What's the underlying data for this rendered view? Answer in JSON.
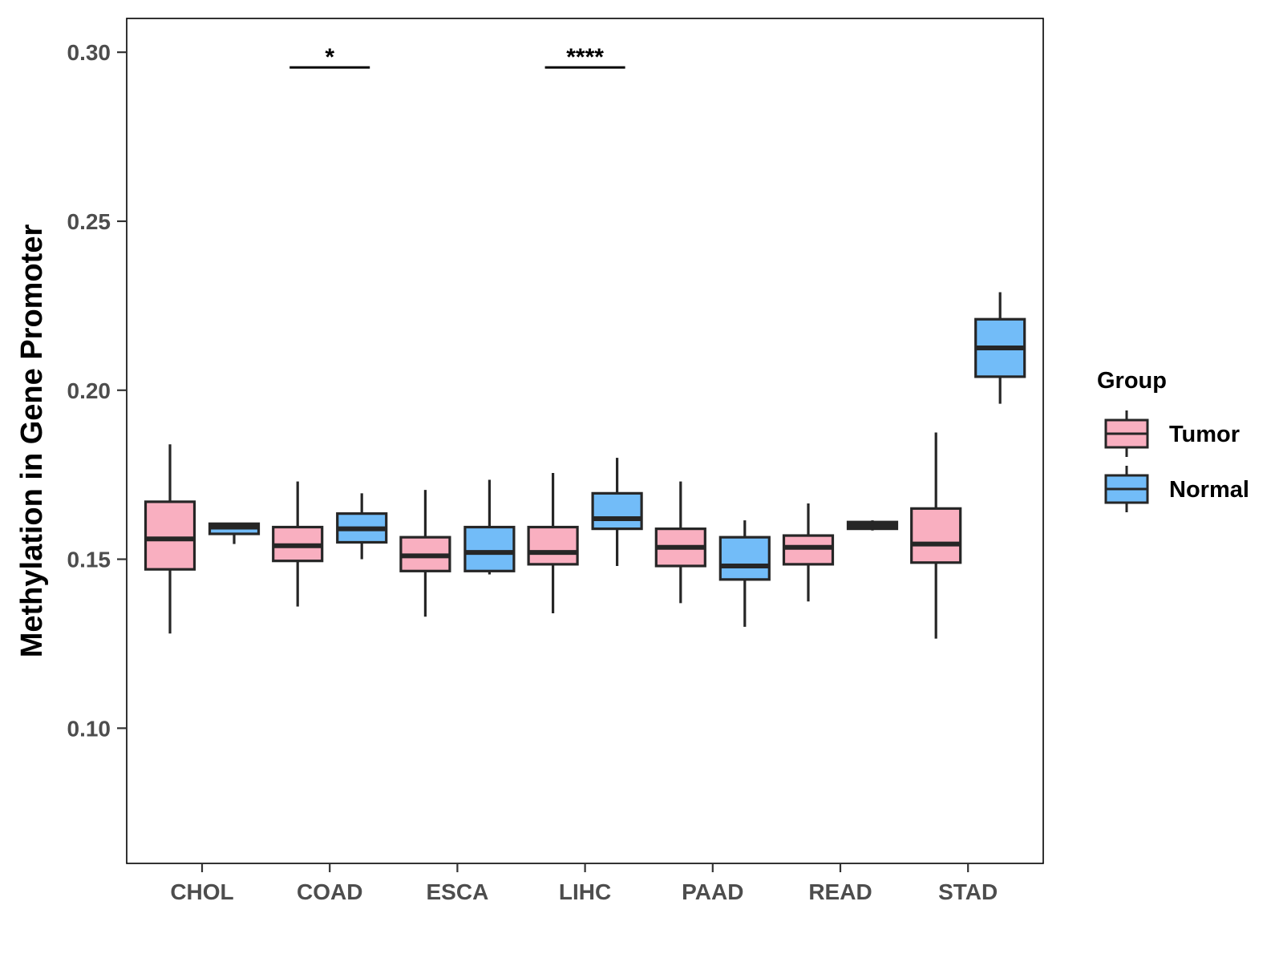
{
  "chart_data": {
    "type": "boxplot",
    "title": "",
    "xlabel": "",
    "ylabel": "Methylation in Gene Promoter",
    "ylim": [
      0.06,
      0.31
    ],
    "yticks": [
      0.1,
      0.15,
      0.2,
      0.25,
      0.3
    ],
    "ytick_labels": [
      "0.10",
      "0.15",
      "0.20",
      "0.25",
      "0.30"
    ],
    "categories": [
      "CHOL",
      "COAD",
      "ESCA",
      "LIHC",
      "PAAD",
      "READ",
      "STAD"
    ],
    "legend": {
      "title": "Group",
      "position": "right",
      "items": [
        {
          "name": "Tumor",
          "color": "#F9AFC0"
        },
        {
          "name": "Normal",
          "color": "#72BCF8"
        }
      ]
    },
    "series": [
      {
        "name": "Tumor",
        "color": "#F9AFC0",
        "boxes": [
          {
            "category": "CHOL",
            "whisker_low": 0.128,
            "q1": 0.147,
            "median": 0.156,
            "q3": 0.167,
            "whisker_high": 0.184
          },
          {
            "category": "COAD",
            "whisker_low": 0.136,
            "q1": 0.1495,
            "median": 0.154,
            "q3": 0.1595,
            "whisker_high": 0.173
          },
          {
            "category": "ESCA",
            "whisker_low": 0.133,
            "q1": 0.1465,
            "median": 0.151,
            "q3": 0.1565,
            "whisker_high": 0.1705
          },
          {
            "category": "LIHC",
            "whisker_low": 0.134,
            "q1": 0.1485,
            "median": 0.152,
            "q3": 0.1595,
            "whisker_high": 0.1755
          },
          {
            "category": "PAAD",
            "whisker_low": 0.137,
            "q1": 0.148,
            "median": 0.1535,
            "q3": 0.159,
            "whisker_high": 0.173
          },
          {
            "category": "READ",
            "whisker_low": 0.1375,
            "q1": 0.1485,
            "median": 0.1535,
            "q3": 0.157,
            "whisker_high": 0.1665
          },
          {
            "category": "STAD",
            "whisker_low": 0.1265,
            "q1": 0.149,
            "median": 0.1545,
            "q3": 0.165,
            "whisker_high": 0.1875
          }
        ]
      },
      {
        "name": "Normal",
        "color": "#72BCF8",
        "boxes": [
          {
            "category": "CHOL",
            "whisker_low": 0.1545,
            "q1": 0.1575,
            "median": 0.1595,
            "q3": 0.1605,
            "whisker_high": 0.1605
          },
          {
            "category": "COAD",
            "whisker_low": 0.15,
            "q1": 0.155,
            "median": 0.159,
            "q3": 0.1635,
            "whisker_high": 0.1695
          },
          {
            "category": "ESCA",
            "whisker_low": 0.1455,
            "q1": 0.1465,
            "median": 0.152,
            "q3": 0.1595,
            "whisker_high": 0.1735
          },
          {
            "category": "LIHC",
            "whisker_low": 0.148,
            "q1": 0.159,
            "median": 0.162,
            "q3": 0.1695,
            "whisker_high": 0.18
          },
          {
            "category": "PAAD",
            "whisker_low": 0.13,
            "q1": 0.144,
            "median": 0.148,
            "q3": 0.1565,
            "whisker_high": 0.1615
          },
          {
            "category": "READ",
            "whisker_low": 0.1585,
            "q1": 0.159,
            "median": 0.16,
            "q3": 0.161,
            "whisker_high": 0.1615
          },
          {
            "category": "STAD",
            "whisker_low": 0.196,
            "q1": 0.204,
            "median": 0.2125,
            "q3": 0.221,
            "whisker_high": 0.229
          }
        ]
      }
    ],
    "annotations": [
      {
        "category": "COAD",
        "label": "*",
        "y": 0.2955
      },
      {
        "category": "LIHC",
        "label": "****",
        "y": 0.2955
      }
    ]
  }
}
